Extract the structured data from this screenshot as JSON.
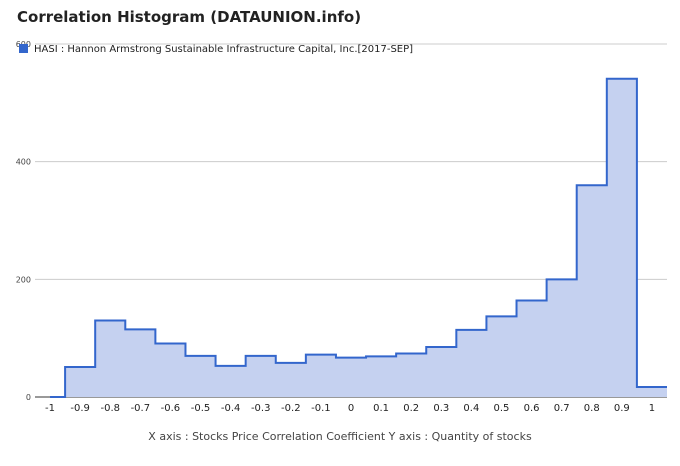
{
  "title": "Correlation Histogram (DATAUNION.info)",
  "colors": {
    "fill": "#c5d1f0",
    "line": "#3366cc",
    "grid": "#cccccc",
    "text": "#222222"
  },
  "chart_data": {
    "type": "area",
    "step": true,
    "series": [
      {
        "name": "HASI : Hannon Armstrong Sustainable Infrastructure Capital, Inc.[2017-SEP]",
        "x": [
          -1,
          -0.95,
          -0.85,
          -0.75,
          -0.65,
          -0.55,
          -0.45,
          -0.35,
          -0.25,
          -0.15,
          -0.05,
          0.05,
          0.15,
          0.25,
          0.35,
          0.45,
          0.55,
          0.65,
          0.75,
          0.85,
          0.95,
          1.05
        ],
        "values": [
          0,
          51,
          130,
          115,
          91,
          70,
          53,
          70,
          58,
          72,
          67,
          69,
          74,
          85,
          114,
          137,
          164,
          200,
          360,
          541,
          17,
          17
        ]
      }
    ],
    "xlim": [
      -1.05,
      1.05
    ],
    "ylim": [
      0,
      600
    ],
    "xticks": [
      "-1",
      "-0.9",
      "-0.8",
      "-0.7",
      "-0.6",
      "-0.5",
      "-0.4",
      "-0.3",
      "-0.2",
      "-0.1",
      "0",
      "0.1",
      "0.2",
      "0.3",
      "0.4",
      "0.5",
      "0.6",
      "0.7",
      "0.8",
      "0.9",
      "1"
    ],
    "yticks": [
      "0",
      "200",
      "400",
      "600"
    ],
    "xlabel": "X axis : Stocks Price Correlation Coefficient  Y axis : Quantity of stocks",
    "ylabel": "",
    "grid": true,
    "legend": "top-left"
  }
}
